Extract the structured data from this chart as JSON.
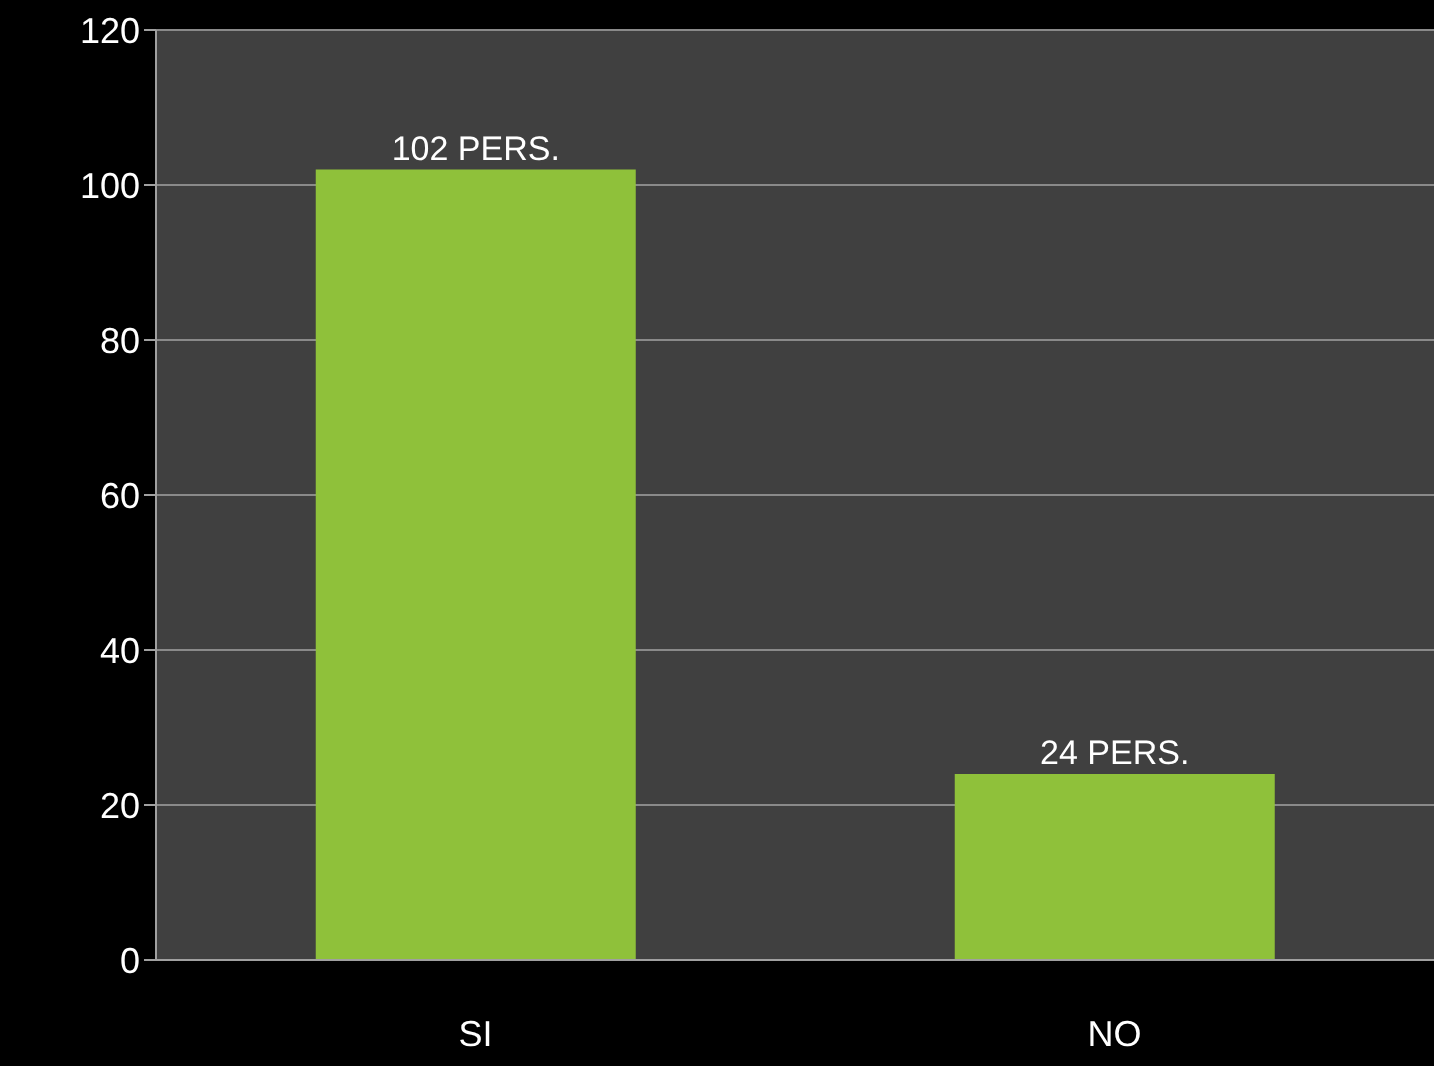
{
  "chart_data": {
    "type": "bar",
    "categories": [
      "SI",
      "NO"
    ],
    "values": [
      102,
      24
    ],
    "color": "#8fc13a",
    "value_labels": [
      "102 PERS.",
      "24 PERS."
    ],
    "ylim": [
      0,
      120
    ],
    "yticks": [
      0,
      20,
      40,
      60,
      80,
      100,
      120
    ],
    "grid": "y"
  }
}
